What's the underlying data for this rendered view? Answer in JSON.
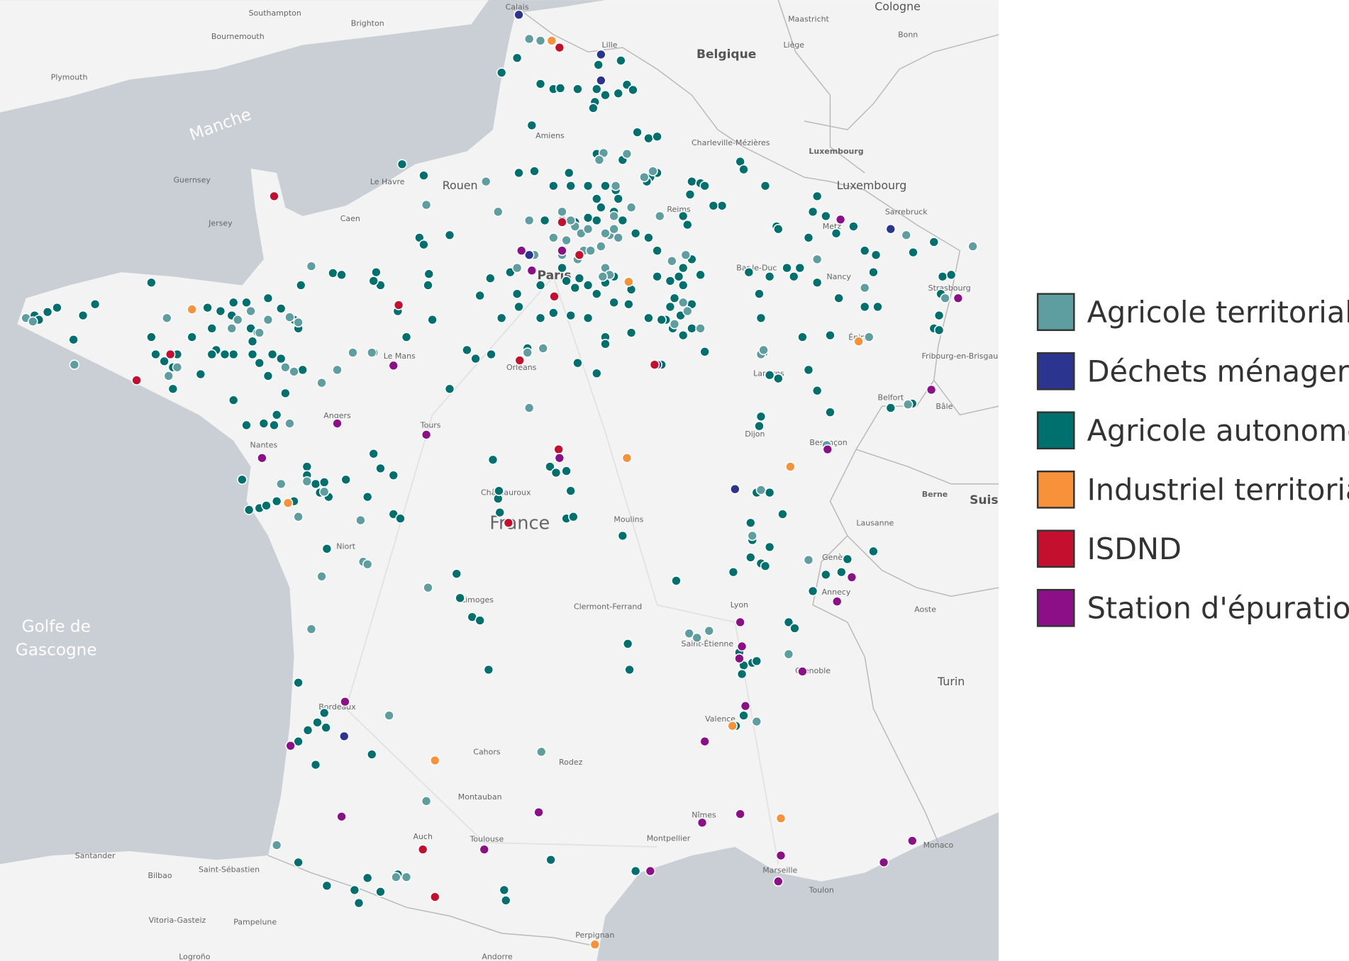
{
  "map": {
    "labels": [
      "Southampton",
      "Brighton",
      "Bournemouth",
      "Plymouth",
      "Manche",
      "Guernsey",
      "Jersey",
      "Caen",
      "Le Havre",
      "Rouen",
      "Amiens",
      "Lille",
      "Calais",
      "Belgique",
      "Liège",
      "Maastricht",
      "Cologne",
      "Bonn",
      "Charleville-Mézières",
      "Luxembourg",
      "Luxembourg",
      "Reims",
      "Metz",
      "Sarrebruck",
      "Paris",
      "Nancy",
      "Strasbourg",
      "Bar-le-Duc",
      "Épinal",
      "Fribourg-en-Brisgau",
      "Orléans",
      "Le Mans",
      "Langres",
      "Belfort",
      "Bâle",
      "Angers",
      "Tours",
      "Nantes",
      "Dijon",
      "Besançon",
      "Châteauroux",
      "France",
      "Moulins",
      "Berne",
      "Suiss",
      "Lausanne",
      "Genève",
      "Annecy",
      "Niort",
      "Limoges",
      "Clermont-Ferrand",
      "Lyon",
      "Aoste",
      "Golfe de",
      "Gascogne",
      "Saint-Étienne",
      "Grenoble",
      "Turin",
      "Bordeaux",
      "Valence",
      "Cahors",
      "Rodez",
      "Montauban",
      "Nîmes",
      "Auch",
      "Toulouse",
      "Montpellier",
      "Monaco",
      "Marseille",
      "Toulon",
      "Santander",
      "Bilbao",
      "Saint-Sébastien",
      "Vitoria-Gasteiz",
      "Pampelune",
      "Logroño",
      "Perpignan",
      "Andorre"
    ]
  },
  "legend": {
    "items": [
      {
        "name": "Agricole territorial",
        "color": "#5f9ea0"
      },
      {
        "name": "Déchets ménagers",
        "color": "#2b3590"
      },
      {
        "name": "Agricole autonome",
        "color": "#00706f"
      },
      {
        "name": "Industriel territorial",
        "color": "#f7923a"
      },
      {
        "name": "ISDND",
        "color": "#c4102e"
      },
      {
        "name": "Station d'épuration",
        "color": "#8c0f87"
      }
    ]
  }
}
